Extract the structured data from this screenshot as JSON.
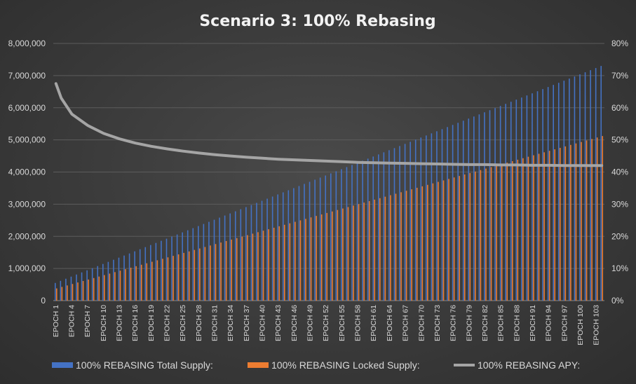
{
  "chart_data": {
    "type": "bar",
    "title": "Scenario 3: 100% Rebasing",
    "x_categories": "EPOCH 1 … EPOCH 104",
    "x_tick_labels": [
      "EPOCH 1",
      "EPOCH 4",
      "EPOCH 7",
      "EPOCH 10",
      "EPOCH 13",
      "EPOCH 16",
      "EPOCH 19",
      "EPOCH 22",
      "EPOCH 25",
      "EPOCH 28",
      "EPOCH 31",
      "EPOCH 34",
      "EPOCH 37",
      "EPOCH 40",
      "EPOCH 43",
      "EPOCH 46",
      "EPOCH 49",
      "EPOCH 52",
      "EPOCH 55",
      "EPOCH 58",
      "EPOCH 61",
      "EPOCH 64",
      "EPOCH 67",
      "EPOCH 70",
      "EPOCH 73",
      "EPOCH 76",
      "EPOCH 79",
      "EPOCH 82",
      "EPOCH 85",
      "EPOCH 88",
      "EPOCH 91",
      "EPOCH 94",
      "EPOCH 97",
      "EPOCH 100",
      "EPOCH 103"
    ],
    "epoch_count": 104,
    "y_left": {
      "min": 0,
      "max": 8000000,
      "step": 1000000,
      "tick_labels": [
        "0",
        "1,000,000",
        "2,000,000",
        "3,000,000",
        "4,000,000",
        "5,000,000",
        "6,000,000",
        "7,000,000",
        "8,000,000"
      ]
    },
    "y_right": {
      "min": 0,
      "max": 0.8,
      "step": 0.1,
      "tick_labels": [
        "0%",
        "10%",
        "20%",
        "30%",
        "40%",
        "50%",
        "60%",
        "70%",
        "80%"
      ]
    },
    "series": [
      {
        "name": "100% REBASING Total Supply:",
        "kind": "bar",
        "axis": "left",
        "color": "#4472c4",
        "start": 550000,
        "end": 7300000
      },
      {
        "name": "100% REBASING Locked Supply:",
        "kind": "bar",
        "axis": "left",
        "color": "#ed7d31",
        "start": 380000,
        "end": 5120000
      },
      {
        "name": "100% REBASING APY:",
        "kind": "line",
        "axis": "right",
        "color": "#a5a5a5",
        "points": [
          [
            1,
            0.675
          ],
          [
            2,
            0.63
          ],
          [
            4,
            0.58
          ],
          [
            7,
            0.545
          ],
          [
            10,
            0.52
          ],
          [
            13,
            0.503
          ],
          [
            16,
            0.49
          ],
          [
            19,
            0.48
          ],
          [
            22,
            0.472
          ],
          [
            25,
            0.465
          ],
          [
            28,
            0.459
          ],
          [
            31,
            0.454
          ],
          [
            34,
            0.45
          ],
          [
            37,
            0.446
          ],
          [
            40,
            0.443
          ],
          [
            43,
            0.44
          ],
          [
            46,
            0.438
          ],
          [
            49,
            0.436
          ],
          [
            52,
            0.434
          ],
          [
            55,
            0.432
          ],
          [
            58,
            0.43
          ],
          [
            61,
            0.429
          ],
          [
            64,
            0.428
          ],
          [
            67,
            0.427
          ],
          [
            70,
            0.426
          ],
          [
            73,
            0.425
          ],
          [
            76,
            0.424
          ],
          [
            79,
            0.423
          ],
          [
            82,
            0.423
          ],
          [
            85,
            0.422
          ],
          [
            88,
            0.422
          ],
          [
            91,
            0.421
          ],
          [
            94,
            0.421
          ],
          [
            97,
            0.42
          ],
          [
            100,
            0.42
          ],
          [
            104,
            0.42
          ]
        ]
      }
    ],
    "grid": true,
    "legend_position": "bottom"
  }
}
